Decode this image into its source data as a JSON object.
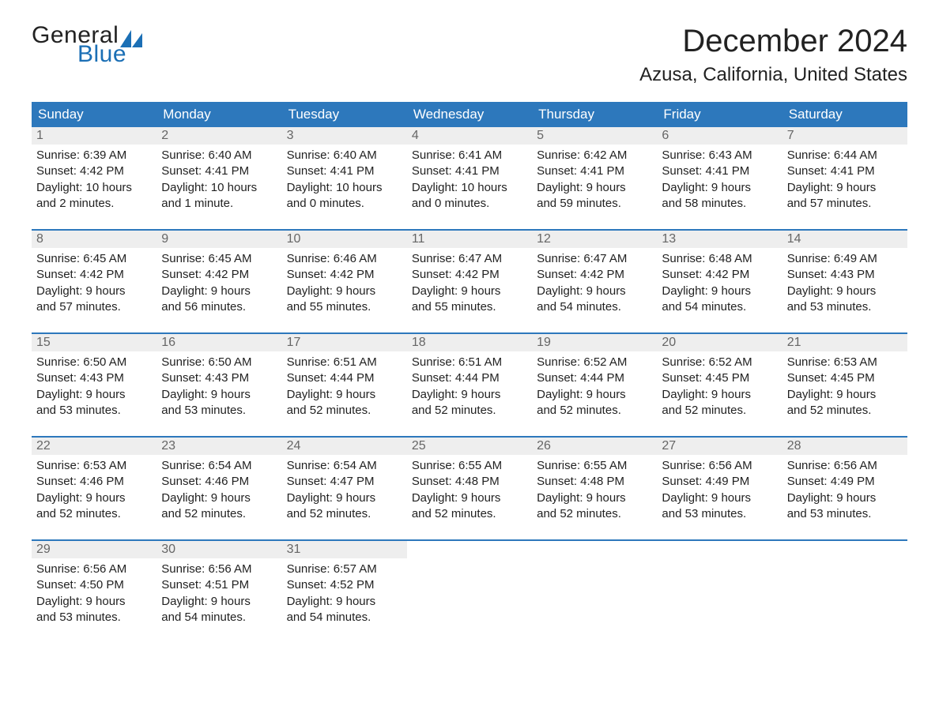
{
  "brand": {
    "general": "General",
    "blue": "Blue",
    "accent": "#1b6fb5"
  },
  "title": "December 2024",
  "location": "Azusa, California, United States",
  "colors": {
    "header_bg": "#2d78bc",
    "header_text": "#ffffff",
    "daynum_bg": "#eeeeee",
    "daynum_text": "#666666",
    "body_text": "#222222",
    "rule": "#2d78bc",
    "page_bg": "#ffffff"
  },
  "weekdays": [
    "Sunday",
    "Monday",
    "Tuesday",
    "Wednesday",
    "Thursday",
    "Friday",
    "Saturday"
  ],
  "weeks": [
    [
      {
        "n": "1",
        "sunrise": "Sunrise: 6:39 AM",
        "sunset": "Sunset: 4:42 PM",
        "d1": "Daylight: 10 hours",
        "d2": "and 2 minutes."
      },
      {
        "n": "2",
        "sunrise": "Sunrise: 6:40 AM",
        "sunset": "Sunset: 4:41 PM",
        "d1": "Daylight: 10 hours",
        "d2": "and 1 minute."
      },
      {
        "n": "3",
        "sunrise": "Sunrise: 6:40 AM",
        "sunset": "Sunset: 4:41 PM",
        "d1": "Daylight: 10 hours",
        "d2": "and 0 minutes."
      },
      {
        "n": "4",
        "sunrise": "Sunrise: 6:41 AM",
        "sunset": "Sunset: 4:41 PM",
        "d1": "Daylight: 10 hours",
        "d2": "and 0 minutes."
      },
      {
        "n": "5",
        "sunrise": "Sunrise: 6:42 AM",
        "sunset": "Sunset: 4:41 PM",
        "d1": "Daylight: 9 hours",
        "d2": "and 59 minutes."
      },
      {
        "n": "6",
        "sunrise": "Sunrise: 6:43 AM",
        "sunset": "Sunset: 4:41 PM",
        "d1": "Daylight: 9 hours",
        "d2": "and 58 minutes."
      },
      {
        "n": "7",
        "sunrise": "Sunrise: 6:44 AM",
        "sunset": "Sunset: 4:41 PM",
        "d1": "Daylight: 9 hours",
        "d2": "and 57 minutes."
      }
    ],
    [
      {
        "n": "8",
        "sunrise": "Sunrise: 6:45 AM",
        "sunset": "Sunset: 4:42 PM",
        "d1": "Daylight: 9 hours",
        "d2": "and 57 minutes."
      },
      {
        "n": "9",
        "sunrise": "Sunrise: 6:45 AM",
        "sunset": "Sunset: 4:42 PM",
        "d1": "Daylight: 9 hours",
        "d2": "and 56 minutes."
      },
      {
        "n": "10",
        "sunrise": "Sunrise: 6:46 AM",
        "sunset": "Sunset: 4:42 PM",
        "d1": "Daylight: 9 hours",
        "d2": "and 55 minutes."
      },
      {
        "n": "11",
        "sunrise": "Sunrise: 6:47 AM",
        "sunset": "Sunset: 4:42 PM",
        "d1": "Daylight: 9 hours",
        "d2": "and 55 minutes."
      },
      {
        "n": "12",
        "sunrise": "Sunrise: 6:47 AM",
        "sunset": "Sunset: 4:42 PM",
        "d1": "Daylight: 9 hours",
        "d2": "and 54 minutes."
      },
      {
        "n": "13",
        "sunrise": "Sunrise: 6:48 AM",
        "sunset": "Sunset: 4:42 PM",
        "d1": "Daylight: 9 hours",
        "d2": "and 54 minutes."
      },
      {
        "n": "14",
        "sunrise": "Sunrise: 6:49 AM",
        "sunset": "Sunset: 4:43 PM",
        "d1": "Daylight: 9 hours",
        "d2": "and 53 minutes."
      }
    ],
    [
      {
        "n": "15",
        "sunrise": "Sunrise: 6:50 AM",
        "sunset": "Sunset: 4:43 PM",
        "d1": "Daylight: 9 hours",
        "d2": "and 53 minutes."
      },
      {
        "n": "16",
        "sunrise": "Sunrise: 6:50 AM",
        "sunset": "Sunset: 4:43 PM",
        "d1": "Daylight: 9 hours",
        "d2": "and 53 minutes."
      },
      {
        "n": "17",
        "sunrise": "Sunrise: 6:51 AM",
        "sunset": "Sunset: 4:44 PM",
        "d1": "Daylight: 9 hours",
        "d2": "and 52 minutes."
      },
      {
        "n": "18",
        "sunrise": "Sunrise: 6:51 AM",
        "sunset": "Sunset: 4:44 PM",
        "d1": "Daylight: 9 hours",
        "d2": "and 52 minutes."
      },
      {
        "n": "19",
        "sunrise": "Sunrise: 6:52 AM",
        "sunset": "Sunset: 4:44 PM",
        "d1": "Daylight: 9 hours",
        "d2": "and 52 minutes."
      },
      {
        "n": "20",
        "sunrise": "Sunrise: 6:52 AM",
        "sunset": "Sunset: 4:45 PM",
        "d1": "Daylight: 9 hours",
        "d2": "and 52 minutes."
      },
      {
        "n": "21",
        "sunrise": "Sunrise: 6:53 AM",
        "sunset": "Sunset: 4:45 PM",
        "d1": "Daylight: 9 hours",
        "d2": "and 52 minutes."
      }
    ],
    [
      {
        "n": "22",
        "sunrise": "Sunrise: 6:53 AM",
        "sunset": "Sunset: 4:46 PM",
        "d1": "Daylight: 9 hours",
        "d2": "and 52 minutes."
      },
      {
        "n": "23",
        "sunrise": "Sunrise: 6:54 AM",
        "sunset": "Sunset: 4:46 PM",
        "d1": "Daylight: 9 hours",
        "d2": "and 52 minutes."
      },
      {
        "n": "24",
        "sunrise": "Sunrise: 6:54 AM",
        "sunset": "Sunset: 4:47 PM",
        "d1": "Daylight: 9 hours",
        "d2": "and 52 minutes."
      },
      {
        "n": "25",
        "sunrise": "Sunrise: 6:55 AM",
        "sunset": "Sunset: 4:48 PM",
        "d1": "Daylight: 9 hours",
        "d2": "and 52 minutes."
      },
      {
        "n": "26",
        "sunrise": "Sunrise: 6:55 AM",
        "sunset": "Sunset: 4:48 PM",
        "d1": "Daylight: 9 hours",
        "d2": "and 52 minutes."
      },
      {
        "n": "27",
        "sunrise": "Sunrise: 6:56 AM",
        "sunset": "Sunset: 4:49 PM",
        "d1": "Daylight: 9 hours",
        "d2": "and 53 minutes."
      },
      {
        "n": "28",
        "sunrise": "Sunrise: 6:56 AM",
        "sunset": "Sunset: 4:49 PM",
        "d1": "Daylight: 9 hours",
        "d2": "and 53 minutes."
      }
    ],
    [
      {
        "n": "29",
        "sunrise": "Sunrise: 6:56 AM",
        "sunset": "Sunset: 4:50 PM",
        "d1": "Daylight: 9 hours",
        "d2": "and 53 minutes."
      },
      {
        "n": "30",
        "sunrise": "Sunrise: 6:56 AM",
        "sunset": "Sunset: 4:51 PM",
        "d1": "Daylight: 9 hours",
        "d2": "and 54 minutes."
      },
      {
        "n": "31",
        "sunrise": "Sunrise: 6:57 AM",
        "sunset": "Sunset: 4:52 PM",
        "d1": "Daylight: 9 hours",
        "d2": "and 54 minutes."
      },
      {
        "empty": true
      },
      {
        "empty": true
      },
      {
        "empty": true
      },
      {
        "empty": true
      }
    ]
  ]
}
